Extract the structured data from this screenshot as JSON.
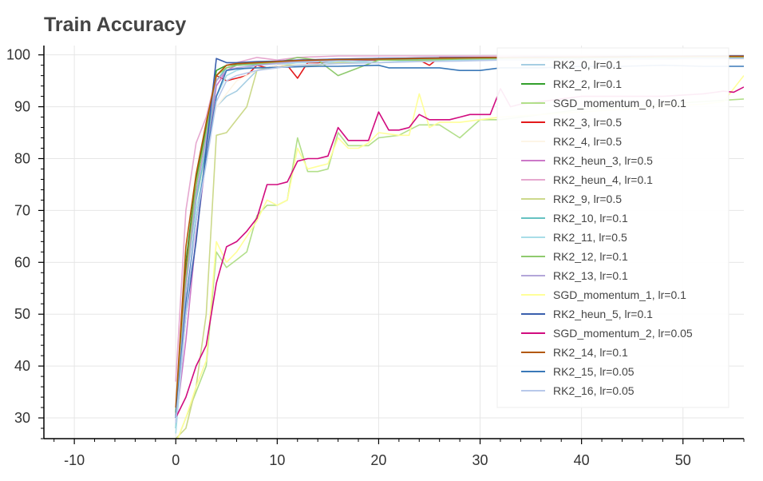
{
  "chart_data": {
    "type": "line",
    "title": "Train Accuracy",
    "xlabel": "",
    "ylabel": "",
    "xlim": [
      -13,
      56
    ],
    "ylim": [
      26,
      101.8
    ],
    "x_ticks": [
      -10,
      0,
      10,
      20,
      30,
      40,
      50
    ],
    "y_ticks": [
      30,
      40,
      50,
      60,
      70,
      80,
      90,
      100
    ],
    "grid": true,
    "legend_position": "top-right",
    "series": [
      {
        "name": "RK2_0, lr=0.1",
        "color": "#a6cee3",
        "x": [
          0,
          1,
          2,
          3,
          4,
          5,
          6,
          8,
          10,
          12,
          16,
          20,
          24,
          28,
          32,
          36,
          40,
          44,
          48,
          52,
          56
        ],
        "y": [
          28,
          55,
          74,
          83,
          90,
          92,
          93,
          97,
          98,
          98.5,
          98.5,
          99,
          99,
          99.2,
          99.3,
          99.3,
          99.4,
          99.5,
          99.5,
          99.5,
          99.5
        ]
      },
      {
        "name": "RK2_2, lr=0.1",
        "color": "#33a02c",
        "x": [
          0,
          1,
          2,
          3,
          4,
          5,
          6,
          8,
          10,
          12,
          16,
          20,
          24,
          28,
          32,
          36,
          40,
          44,
          48,
          52,
          56
        ],
        "y": [
          31,
          60,
          76,
          86,
          97,
          98,
          98.2,
          98.4,
          98.6,
          98.8,
          99,
          99.2,
          99.3,
          99.4,
          99.5,
          99.6,
          99.6,
          99.7,
          99.7,
          99.8,
          99.8
        ]
      },
      {
        "name": "SGD_momentum_0, lr=0.1",
        "color": "#b2df8a",
        "x": [
          0,
          1,
          2,
          3,
          4,
          5,
          6,
          7,
          8,
          9,
          10,
          11,
          12,
          13,
          14,
          15,
          16,
          17,
          18,
          19,
          20,
          22,
          24,
          26,
          28,
          30,
          32,
          34,
          36,
          40,
          44,
          48,
          52,
          56
        ],
        "y": [
          25,
          30,
          35,
          40,
          62,
          59,
          60.5,
          62,
          69,
          71,
          71,
          72,
          84,
          77.5,
          77.5,
          78,
          85,
          82.5,
          82.5,
          82.5,
          84,
          84.5,
          86.5,
          86.5,
          84,
          87.5,
          87.5,
          88,
          88.5,
          89.5,
          90,
          90.5,
          91,
          91.5
        ]
      },
      {
        "name": "RK2_3, lr=0.5",
        "color": "#e31a1c",
        "x": [
          0,
          1,
          2,
          3,
          4,
          5,
          6,
          7,
          8,
          9,
          10,
          11,
          12,
          13,
          14,
          16,
          18,
          20,
          22,
          24,
          25,
          26,
          28,
          30,
          32,
          36,
          40,
          44,
          48,
          52,
          56
        ],
        "y": [
          30,
          58,
          75,
          85,
          96,
          95,
          95.5,
          96,
          98,
          97.5,
          98,
          98,
          95.5,
          98.5,
          98.5,
          99,
          99,
          99,
          99,
          99,
          98,
          99.5,
          99.5,
          99.5,
          99.5,
          99.6,
          99.7,
          99.7,
          99.8,
          99.8,
          99.8
        ]
      },
      {
        "name": "RK2_4, lr=0.5",
        "color": "#fdf5e6",
        "x": [
          0,
          1,
          2,
          3,
          4,
          6,
          8,
          10,
          20,
          30,
          40,
          50,
          56
        ],
        "y": [
          28,
          50,
          70,
          82,
          90,
          95,
          97,
          98,
          98.5,
          99,
          99,
          99.2,
          99.2
        ]
      },
      {
        "name": "RK2_heun_3, lr=0.5",
        "color": "#cc79c8",
        "x": [
          0,
          1,
          2,
          3,
          4,
          5,
          6,
          8,
          10,
          12,
          16,
          20,
          24,
          28,
          32,
          36,
          40,
          44,
          48,
          52,
          56
        ],
        "y": [
          29,
          45,
          65,
          80,
          94,
          97,
          98,
          98.5,
          98.8,
          99,
          99.2,
          99.3,
          99.4,
          99.5,
          99.5,
          99.6,
          99.6,
          99.7,
          99.7,
          99.8,
          99.8
        ]
      },
      {
        "name": "RK2_heun_4, lr=0.1",
        "color": "#e6a8cf",
        "x": [
          0,
          1,
          2,
          3,
          4,
          5,
          6,
          8,
          10,
          12,
          16,
          20,
          24,
          28,
          32,
          36,
          40,
          44,
          48,
          52,
          56
        ],
        "y": [
          37,
          70,
          83,
          88,
          96,
          98,
          98.5,
          99.5,
          99,
          99.5,
          99.8,
          99.8,
          99.8,
          99.8,
          99.8,
          99.8,
          99.8,
          99.8,
          99.8,
          99.8,
          99.8
        ]
      },
      {
        "name": "RK2_9, lr=0.5",
        "color": "#ccd98b",
        "x": [
          0,
          1,
          2,
          3,
          4,
          5,
          6,
          7,
          8,
          9,
          10,
          11,
          12,
          14,
          16,
          20,
          24,
          28,
          32,
          36,
          40,
          44,
          48,
          52,
          56
        ],
        "y": [
          26,
          28,
          36,
          50,
          84.5,
          85,
          87.5,
          90,
          97,
          97.5,
          97.5,
          98,
          98,
          98,
          98.5,
          98.5,
          98.8,
          99,
          99,
          99.2,
          99.3,
          99.3,
          99.4,
          99.4,
          99.4
        ]
      },
      {
        "name": "RK2_10, lr=0.1",
        "color": "#66c2c2",
        "x": [
          0,
          1,
          2,
          3,
          4,
          5,
          6,
          8,
          10,
          12,
          16,
          20,
          24,
          28,
          32,
          36,
          40,
          44,
          48,
          52,
          56
        ],
        "y": [
          28,
          55,
          72,
          82,
          95,
          97.5,
          98,
          98.2,
          98.5,
          98.7,
          99,
          99.1,
          99.2,
          99.3,
          99.4,
          99.4,
          99.5,
          99.5,
          99.6,
          99.6,
          99.6
        ]
      },
      {
        "name": "RK2_11, lr=0.5",
        "color": "#a9dde8",
        "x": [
          0,
          1,
          2,
          3,
          4,
          5,
          6,
          8,
          10,
          12,
          16,
          20,
          24,
          28,
          32,
          36,
          40,
          44,
          48,
          52,
          56
        ],
        "y": [
          27,
          50,
          70,
          80,
          92,
          96,
          97,
          98,
          98.3,
          98.5,
          98.8,
          98.5,
          99,
          99,
          99.2,
          99.2,
          99.3,
          99.4,
          99.4,
          99.5,
          99.5
        ]
      },
      {
        "name": "RK2_12, lr=0.1",
        "color": "#8fca6e",
        "x": [
          0,
          1,
          2,
          3,
          4,
          5,
          6,
          8,
          10,
          12,
          14,
          16,
          20,
          24,
          28,
          32,
          36,
          40,
          44,
          48,
          52,
          56
        ],
        "y": [
          30,
          57,
          75,
          85,
          96,
          97.5,
          98,
          98.3,
          98.5,
          99.5,
          99,
          96,
          99,
          99,
          99.2,
          99.3,
          99.4,
          99.4,
          99.5,
          99.5,
          99.6,
          99.6
        ]
      },
      {
        "name": "RK2_13, lr=0.1",
        "color": "#b3a6d9",
        "x": [
          0,
          1,
          2,
          3,
          4,
          5,
          6,
          8,
          10,
          12,
          16,
          20,
          24,
          28,
          32,
          36,
          40,
          44,
          48,
          52,
          56
        ],
        "y": [
          29,
          55,
          73,
          84,
          95,
          97,
          97.5,
          98,
          98.4,
          98.7,
          99,
          99.2,
          99.3,
          99.4,
          99.5,
          99.5,
          99.6,
          99.6,
          99.7,
          99.7,
          99.7
        ]
      },
      {
        "name": "SGD_momentum_1, lr=0.1",
        "color": "#ffff99",
        "x": [
          0,
          1,
          2,
          3,
          4,
          5,
          6,
          7,
          8,
          9,
          10,
          11,
          12,
          13,
          14,
          15,
          16,
          17,
          18,
          19,
          20,
          22,
          23,
          24,
          25,
          26,
          28,
          30,
          32,
          36,
          40,
          44,
          48,
          52,
          54,
          56
        ],
        "y": [
          25,
          30,
          36,
          41,
          64,
          60,
          62,
          65,
          68,
          72,
          71,
          72,
          82,
          78,
          78.5,
          79,
          84,
          82,
          82,
          83,
          85,
          84.5,
          84.5,
          92.5,
          86,
          87,
          87,
          87.5,
          88,
          88.5,
          89,
          89.5,
          90,
          90.5,
          91,
          96
        ]
      },
      {
        "name": "RK2_heun_5, lr=0.1",
        "color": "#3a5fad",
        "x": [
          0,
          1,
          2,
          3,
          4,
          5,
          6,
          8,
          10,
          12,
          16,
          20,
          24,
          28,
          32,
          36,
          40,
          44,
          48,
          52,
          56
        ],
        "y": [
          30,
          50,
          64,
          82,
          99.3,
          98.5,
          98.5,
          98.7,
          98.8,
          99,
          99.2,
          99.3,
          99.4,
          99.5,
          99.5,
          99.6,
          99.6,
          99.7,
          99.7,
          99.8,
          99.8
        ]
      },
      {
        "name": "SGD_momentum_2, lr=0.05",
        "color": "#d10b7f",
        "x": [
          0,
          1,
          2,
          3,
          4,
          5,
          6,
          7,
          8,
          9,
          10,
          11,
          12,
          13,
          14,
          15,
          16,
          17,
          18,
          19,
          20,
          21,
          22,
          23,
          24,
          25,
          26,
          27,
          28,
          29,
          30,
          31,
          32,
          33,
          34,
          36,
          38,
          40,
          44,
          48,
          52,
          54,
          55,
          56
        ],
        "y": [
          30,
          34,
          40,
          44,
          56,
          63,
          64,
          66,
          68.5,
          75,
          75,
          75.5,
          79.5,
          80,
          80,
          80.5,
          86,
          83.5,
          83.5,
          83.5,
          89,
          85.5,
          85.5,
          86,
          88.5,
          87.5,
          87.5,
          87.5,
          88,
          88.5,
          88.5,
          88.5,
          93.5,
          90,
          90.5,
          91,
          91.5,
          92,
          92,
          92,
          92.5,
          93,
          92.8,
          93.8
        ]
      },
      {
        "name": "RK2_14, lr=0.1",
        "color": "#b35806",
        "x": [
          0,
          1,
          2,
          3,
          4,
          5,
          6,
          8,
          10,
          12,
          16,
          20,
          24,
          28,
          32,
          36,
          40,
          44,
          48,
          52,
          56
        ],
        "y": [
          32,
          63,
          77,
          87,
          96,
          98,
          98.3,
          98.5,
          98.7,
          98.9,
          99.1,
          99.2,
          99.3,
          99.4,
          99.5,
          99.5,
          99.6,
          99.6,
          99.7,
          99.7,
          99.7
        ]
      },
      {
        "name": "RK2_15, lr=0.05",
        "color": "#3a78b8",
        "x": [
          0,
          1,
          2,
          3,
          4,
          5,
          6,
          8,
          10,
          12,
          14,
          16,
          18,
          20,
          21,
          22,
          24,
          26,
          28,
          30,
          32,
          36,
          40,
          44,
          48,
          52,
          56
        ],
        "y": [
          30,
          52,
          68,
          80,
          92,
          97,
          97.3,
          97.5,
          97.6,
          97.7,
          97.8,
          97.8,
          97.9,
          98,
          97.5,
          97.5,
          97.5,
          97.5,
          97,
          97,
          97.5,
          97.5,
          97.8,
          97.8,
          98,
          97.8,
          97.8
        ]
      },
      {
        "name": "RK2_16, lr=0.05",
        "color": "#b8c9ea",
        "x": [
          0,
          1,
          2,
          3,
          4,
          5,
          6,
          8,
          10,
          12,
          16,
          20,
          24,
          28,
          32,
          36,
          40,
          44,
          48,
          52,
          56
        ],
        "y": [
          29,
          50,
          68,
          79,
          91,
          95,
          96,
          97,
          97.5,
          98,
          98.3,
          98.5,
          98.7,
          98.8,
          99,
          99,
          99.1,
          99.2,
          99.2,
          99.3,
          99.3
        ]
      }
    ]
  }
}
